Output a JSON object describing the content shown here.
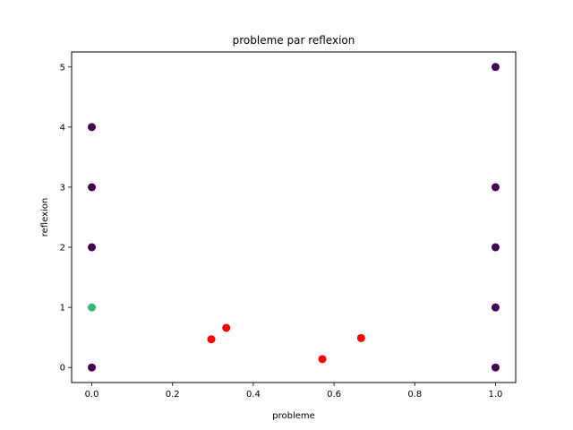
{
  "chart_data": {
    "type": "scatter",
    "title": "probleme par reflexion",
    "xlabel": "probleme",
    "ylabel": "reflexion",
    "xlim": [
      -0.05,
      1.05
    ],
    "ylim": [
      -0.25,
      5.25
    ],
    "xticks": [
      0.0,
      0.2,
      0.4,
      0.6,
      0.8,
      1.0
    ],
    "xtick_labels": [
      "0.0",
      "0.2",
      "0.4",
      "0.6",
      "0.8",
      "1.0"
    ],
    "yticks": [
      0,
      1,
      2,
      3,
      4,
      5
    ],
    "ytick_labels": [
      "0",
      "1",
      "2",
      "3",
      "4",
      "5"
    ],
    "grid": false,
    "colors": {
      "purple": "#440154",
      "green": "#35b779",
      "red": "#ff0000"
    },
    "points": [
      {
        "x": 0.0,
        "y": 0,
        "color": "purple"
      },
      {
        "x": 0.0,
        "y": 2,
        "color": "purple"
      },
      {
        "x": 0.0,
        "y": 3,
        "color": "purple"
      },
      {
        "x": 0.0,
        "y": 4,
        "color": "purple"
      },
      {
        "x": 0.0,
        "y": 1,
        "color": "green"
      },
      {
        "x": 1.0,
        "y": 0,
        "color": "purple"
      },
      {
        "x": 1.0,
        "y": 1,
        "color": "purple"
      },
      {
        "x": 1.0,
        "y": 2,
        "color": "purple"
      },
      {
        "x": 1.0,
        "y": 3,
        "color": "purple"
      },
      {
        "x": 1.0,
        "y": 5,
        "color": "purple"
      },
      {
        "x": 0.296,
        "y": 0.47,
        "color": "red"
      },
      {
        "x": 0.333,
        "y": 0.66,
        "color": "red"
      },
      {
        "x": 0.571,
        "y": 0.14,
        "color": "red"
      },
      {
        "x": 0.667,
        "y": 0.49,
        "color": "red"
      }
    ]
  }
}
